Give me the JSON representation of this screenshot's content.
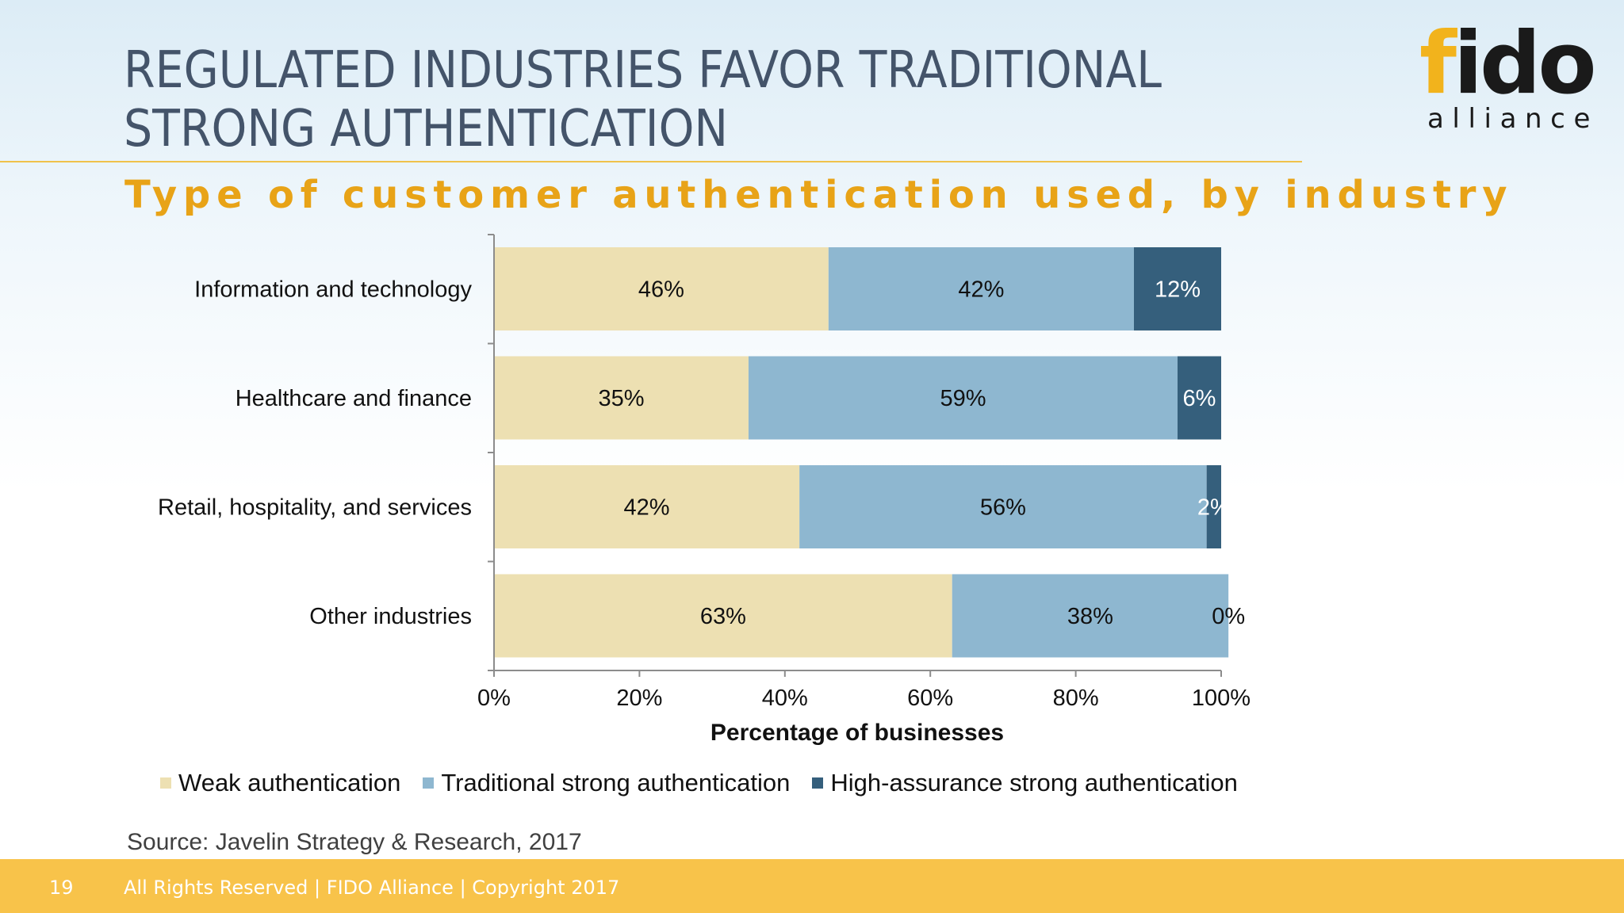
{
  "slide": {
    "title": "REGULATED INDUSTRIES FAVOR TRADITIONAL STRONG AUTHENTICATION",
    "subtitle": "Type of customer authentication used, by industry",
    "logo": {
      "word": "fido",
      "sub": "alliance",
      "reg": "®"
    },
    "source": "Source: Javelin Strategy & Research, 2017",
    "footer": {
      "page_number": "19",
      "text": "All Rights Reserved | FIDO Alliance | Copyright 2017"
    }
  },
  "colors": {
    "weak": "#ede0b2",
    "traditional": "#8eb7d0",
    "high_assurance": "#355f7c",
    "title": "#44546a",
    "subtitle": "#e8a317",
    "footer": "#f8c34a",
    "logo_accent": "#f2b31c"
  },
  "chart_data": {
    "type": "bar",
    "orientation": "horizontal",
    "stacked": true,
    "categories": [
      "Information and technology",
      "Healthcare and finance",
      "Retail, hospitality, and services",
      "Other industries"
    ],
    "series": [
      {
        "name": "Weak authentication",
        "values": [
          46,
          35,
          42,
          63
        ],
        "labels": [
          "46%",
          "35%",
          "42%",
          "63%"
        ]
      },
      {
        "name": "Traditional strong authentication",
        "values": [
          42,
          59,
          56,
          38
        ],
        "labels": [
          "42%",
          "59%",
          "56%",
          "38%"
        ]
      },
      {
        "name": "High-assurance strong authentication",
        "values": [
          12,
          6,
          2,
          0
        ],
        "labels": [
          "12%",
          "6%",
          "2%",
          "0%"
        ]
      }
    ],
    "xlabel": "Percentage of businesses",
    "xlim": [
      0,
      100
    ],
    "xticks": [
      "0%",
      "20%",
      "40%",
      "60%",
      "80%",
      "100%"
    ],
    "legend_position": "bottom",
    "grid": false
  }
}
